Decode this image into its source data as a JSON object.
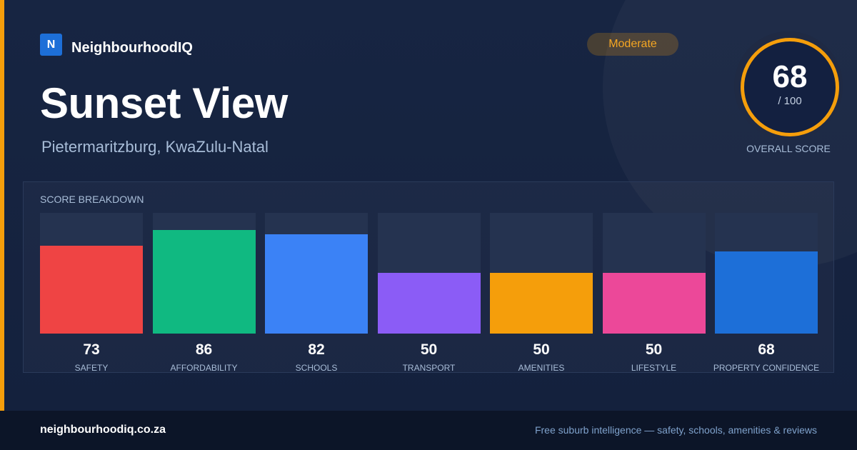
{
  "brand": {
    "logo_letter": "N",
    "name": "NeighbourhoodIQ"
  },
  "header": {
    "title": "Sunset View",
    "location": "Pietermaritzburg, KwaZulu-Natal"
  },
  "rating_badge": {
    "label": "Moderate",
    "color": "#f5a623"
  },
  "overall_score": {
    "value": "68",
    "max": "/ 100",
    "label": "OVERALL SCORE",
    "ring_color": "#f59e0b"
  },
  "breakdown": {
    "title": "SCORE BREAKDOWN",
    "max": 100,
    "items": [
      {
        "label": "SAFETY",
        "value": 73,
        "color": "#ef4444"
      },
      {
        "label": "AFFORDABILITY",
        "value": 86,
        "color": "#10b981"
      },
      {
        "label": "SCHOOLS",
        "value": 82,
        "color": "#3b82f6"
      },
      {
        "label": "TRANSPORT",
        "value": 50,
        "color": "#8b5cf6"
      },
      {
        "label": "AMENITIES",
        "value": 50,
        "color": "#f59e0b"
      },
      {
        "label": "LIFESTYLE",
        "value": 50,
        "color": "#ec4899"
      },
      {
        "label": "PROPERTY CONFIDENCE",
        "value": 68,
        "color": "#1d6fd8"
      }
    ]
  },
  "footer": {
    "url": "neighbourhoodiq.co.za",
    "tagline": "Free suburb intelligence — safety, schools, amenities & reviews"
  },
  "colors": {
    "accent": "#f59e0b",
    "background": "#14213d",
    "footer": "#0c1528"
  }
}
